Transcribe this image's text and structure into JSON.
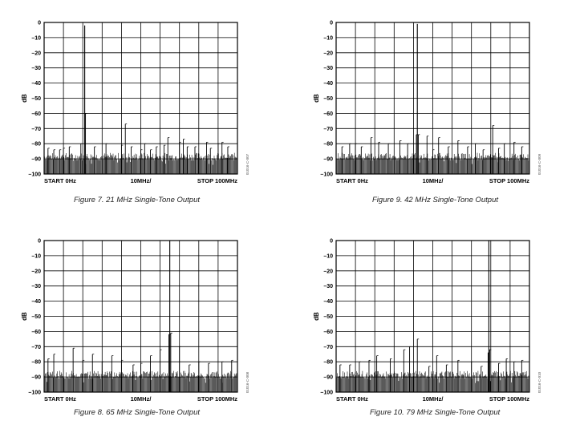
{
  "chart_data": [
    {
      "type": "line",
      "caption": "Figure 7. 21 MHz Single-Tone Output",
      "ylabel": "dB",
      "ylim": [
        -100,
        0
      ],
      "yticks": [
        "0",
        "–10",
        "–20",
        "–30",
        "–40",
        "–50",
        "–60",
        "–70",
        "–80",
        "–90",
        "–100"
      ],
      "x_start_label": "START 0Hz",
      "x_mid_label": "10MHz/",
      "x_stop_label": "STOP 100MHz",
      "xlim": [
        0,
        100
      ],
      "grid": true,
      "side_code": "01016-C-007",
      "noise_floor_db": -89,
      "x": [
        21,
        21.4,
        42,
        2,
        5,
        8,
        10,
        13,
        19,
        26,
        32,
        40,
        45,
        50,
        52,
        55,
        58,
        62,
        64,
        70,
        72,
        74,
        78,
        84,
        86,
        90,
        92,
        95
      ],
      "y": [
        -2,
        -60,
        -67,
        -83,
        -84,
        -84,
        -83,
        -82,
        -80,
        -82,
        -80,
        -81,
        -82,
        -84,
        -80,
        -84,
        -82,
        -81,
        -76,
        -79,
        -77,
        -82,
        -82,
        -79,
        -83,
        -80,
        -79,
        -82
      ]
    },
    {
      "type": "line",
      "caption": "Figure 8. 65 MHz Single-Tone Output",
      "ylabel": "dB",
      "ylim": [
        -100,
        0
      ],
      "yticks": [
        "0",
        "–10",
        "–20",
        "–30",
        "–40",
        "–50",
        "–60",
        "–70",
        "–80",
        "–90",
        "–100"
      ],
      "x_start_label": "START 0Hz",
      "x_mid_label": "10MHz/",
      "x_stop_label": "STOP 100MHz",
      "xlim": [
        0,
        100
      ],
      "grid": true,
      "side_code": "01016-C-008",
      "noise_floor_db": -89,
      "x": [
        65,
        65.5,
        64.5,
        2,
        5,
        15,
        20,
        25,
        30,
        35,
        40,
        46,
        50,
        55,
        60,
        70,
        75,
        80,
        85,
        92,
        97
      ],
      "y": [
        0,
        -61,
        -62,
        -78,
        -75,
        -71,
        -79,
        -75,
        -80,
        -76,
        -79,
        -82,
        -81,
        -76,
        -72,
        -70,
        -82,
        -80,
        -81,
        -80,
        -79
      ]
    },
    {
      "type": "line",
      "caption": "Figure 9. 42 MHz Single-Tone Output",
      "ylabel": "dB",
      "ylim": [
        -100,
        0
      ],
      "yticks": [
        "0",
        "–10",
        "–20",
        "–30",
        "–40",
        "–50",
        "–60",
        "–70",
        "–80",
        "–90",
        "–100"
      ],
      "x_start_label": "START 0Hz",
      "x_mid_label": "10MHz/",
      "x_stop_label": "STOP 100MHz",
      "xlim": [
        0,
        100
      ],
      "grid": true,
      "side_code": "01016-C-009",
      "noise_floor_db": -89,
      "x": [
        42,
        41.5,
        42.5,
        3,
        7,
        10,
        13,
        18,
        22,
        27,
        33,
        37,
        47,
        50,
        53,
        58,
        63,
        68,
        72,
        76,
        81,
        84,
        87,
        92,
        96
      ],
      "y": [
        -1,
        -74,
        -74,
        -82,
        -80,
        -80,
        -82,
        -76,
        -79,
        -80,
        -78,
        -80,
        -75,
        -84,
        -76,
        -82,
        -78,
        -82,
        -80,
        -84,
        -68,
        -83,
        -80,
        -79,
        -82
      ]
    },
    {
      "type": "line",
      "caption": "Figure 10. 79 MHz Single-Tone Output",
      "ylabel": "dB",
      "ylim": [
        -100,
        0
      ],
      "yticks": [
        "0",
        "–10",
        "–20",
        "–30",
        "–40",
        "–50",
        "–60",
        "–70",
        "–80",
        "–90",
        "–100"
      ],
      "x_start_label": "START 0Hz",
      "x_mid_label": "10MHz/",
      "x_stop_label": "STOP 100MHz",
      "xlim": [
        0,
        100
      ],
      "grid": true,
      "side_code": "01016-C-010",
      "noise_floor_db": -89,
      "x": [
        79,
        79.4,
        78.6,
        2,
        7,
        12,
        17,
        21,
        28,
        35,
        38,
        42,
        48,
        52,
        57,
        63,
        70,
        75,
        84,
        88,
        92,
        96
      ],
      "y": [
        0,
        -72,
        -74,
        -82,
        -82,
        -80,
        -79,
        -76,
        -78,
        -72,
        -70,
        -65,
        -83,
        -76,
        -82,
        -79,
        -80,
        -83,
        -81,
        -78,
        -80,
        -79
      ]
    }
  ]
}
